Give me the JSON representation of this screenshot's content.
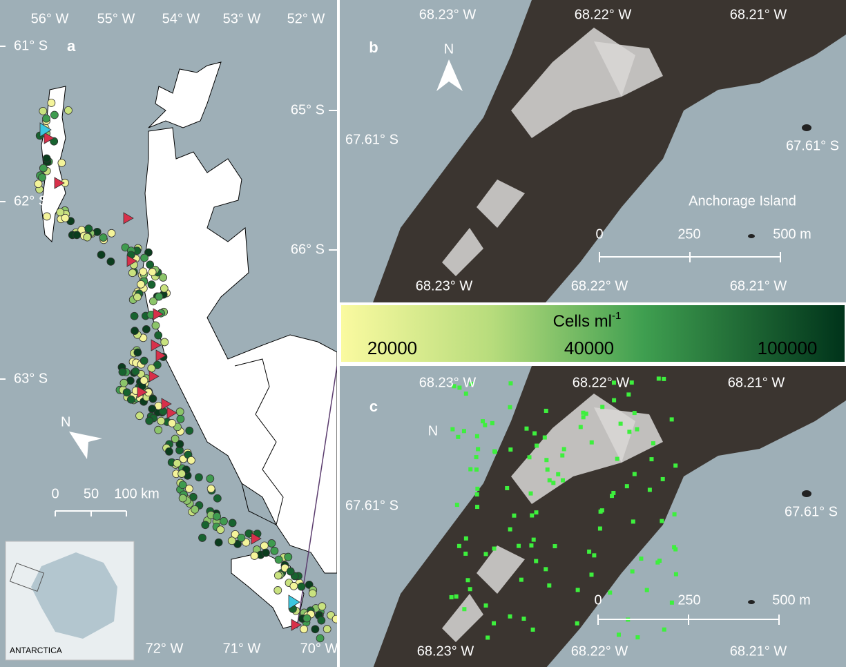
{
  "panel_a": {
    "label": "a",
    "top_lon": [
      "56° W",
      "55° W",
      "54° W",
      "53° W",
      "52° W"
    ],
    "left_lat": [
      "61° S",
      "62° S",
      "63° S"
    ],
    "right_lat": [
      "65° S",
      "66° S"
    ],
    "north": "N",
    "scale": [
      "0",
      "50",
      "100 km"
    ],
    "bottom_lon": [
      "72° W",
      "71° W",
      "70° W"
    ],
    "inset_label": "ANTARCTICA"
  },
  "panel_b": {
    "label": "b",
    "top_lon": [
      "68.23° W",
      "68.22° W",
      "68.21° W"
    ],
    "left_lat": "67.61° S",
    "right_lat": "67.61° S",
    "north": "N",
    "place": "Anchorage Island",
    "scale": [
      "0",
      "250",
      "500 m"
    ],
    "bottom_lon": [
      "68.23° W",
      "68.22° W",
      "68.21° W"
    ]
  },
  "colorbar": {
    "title": "Cells ml",
    "title_sup": "-1",
    "ticks": [
      "20000",
      "40000",
      "100000"
    ]
  },
  "panel_c": {
    "label": "c",
    "top_lon": [
      "68.23° W",
      "68.22° W",
      "68.21° W"
    ],
    "left_lat": "67.61° S",
    "right_lat": "67.61° S",
    "north": "N",
    "scale": [
      "0",
      "250",
      "500 m"
    ],
    "bottom_lon": [
      "68.23° W",
      "68.22° W",
      "68.21° W"
    ]
  }
}
